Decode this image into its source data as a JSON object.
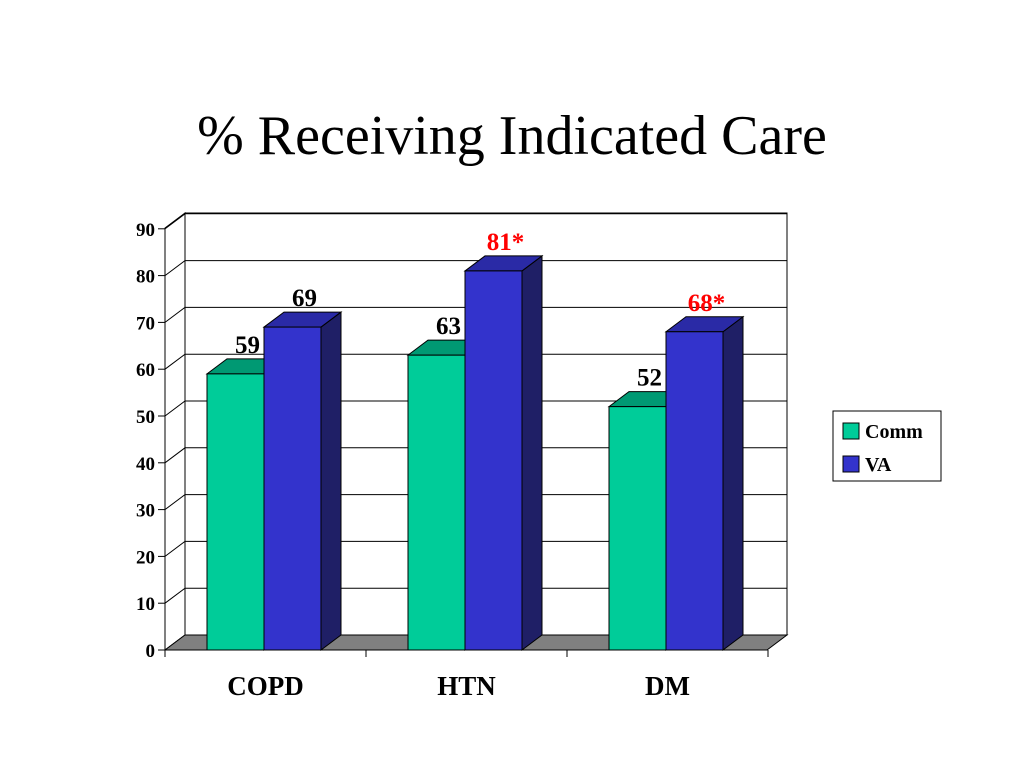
{
  "title": "% Receiving Indicated Care",
  "chart_data": {
    "type": "bar",
    "three_d": true,
    "categories": [
      "COPD",
      "HTN",
      "DM"
    ],
    "series": [
      {
        "name": "Comm",
        "values": [
          59,
          63,
          52
        ],
        "color": "#00CC99",
        "side_color": "#009973"
      },
      {
        "name": "VA",
        "values": [
          69,
          81,
          68
        ],
        "color": "#3333CC",
        "side_color": "#1F1F66"
      }
    ],
    "data_labels": [
      [
        "59",
        "63",
        "52"
      ],
      [
        "69",
        "81*",
        "68*"
      ]
    ],
    "data_label_colors": [
      [
        "#000000",
        "#000000",
        "#000000"
      ],
      [
        "#000000",
        "#FF0000",
        "#FF0000"
      ]
    ],
    "y_ticks": [
      "0",
      "10",
      "20",
      "30",
      "40",
      "50",
      "60",
      "70",
      "80",
      "90"
    ],
    "ylim": [
      0,
      90
    ],
    "grid": true,
    "legend_position": "right",
    "floor_color": "#808080"
  }
}
